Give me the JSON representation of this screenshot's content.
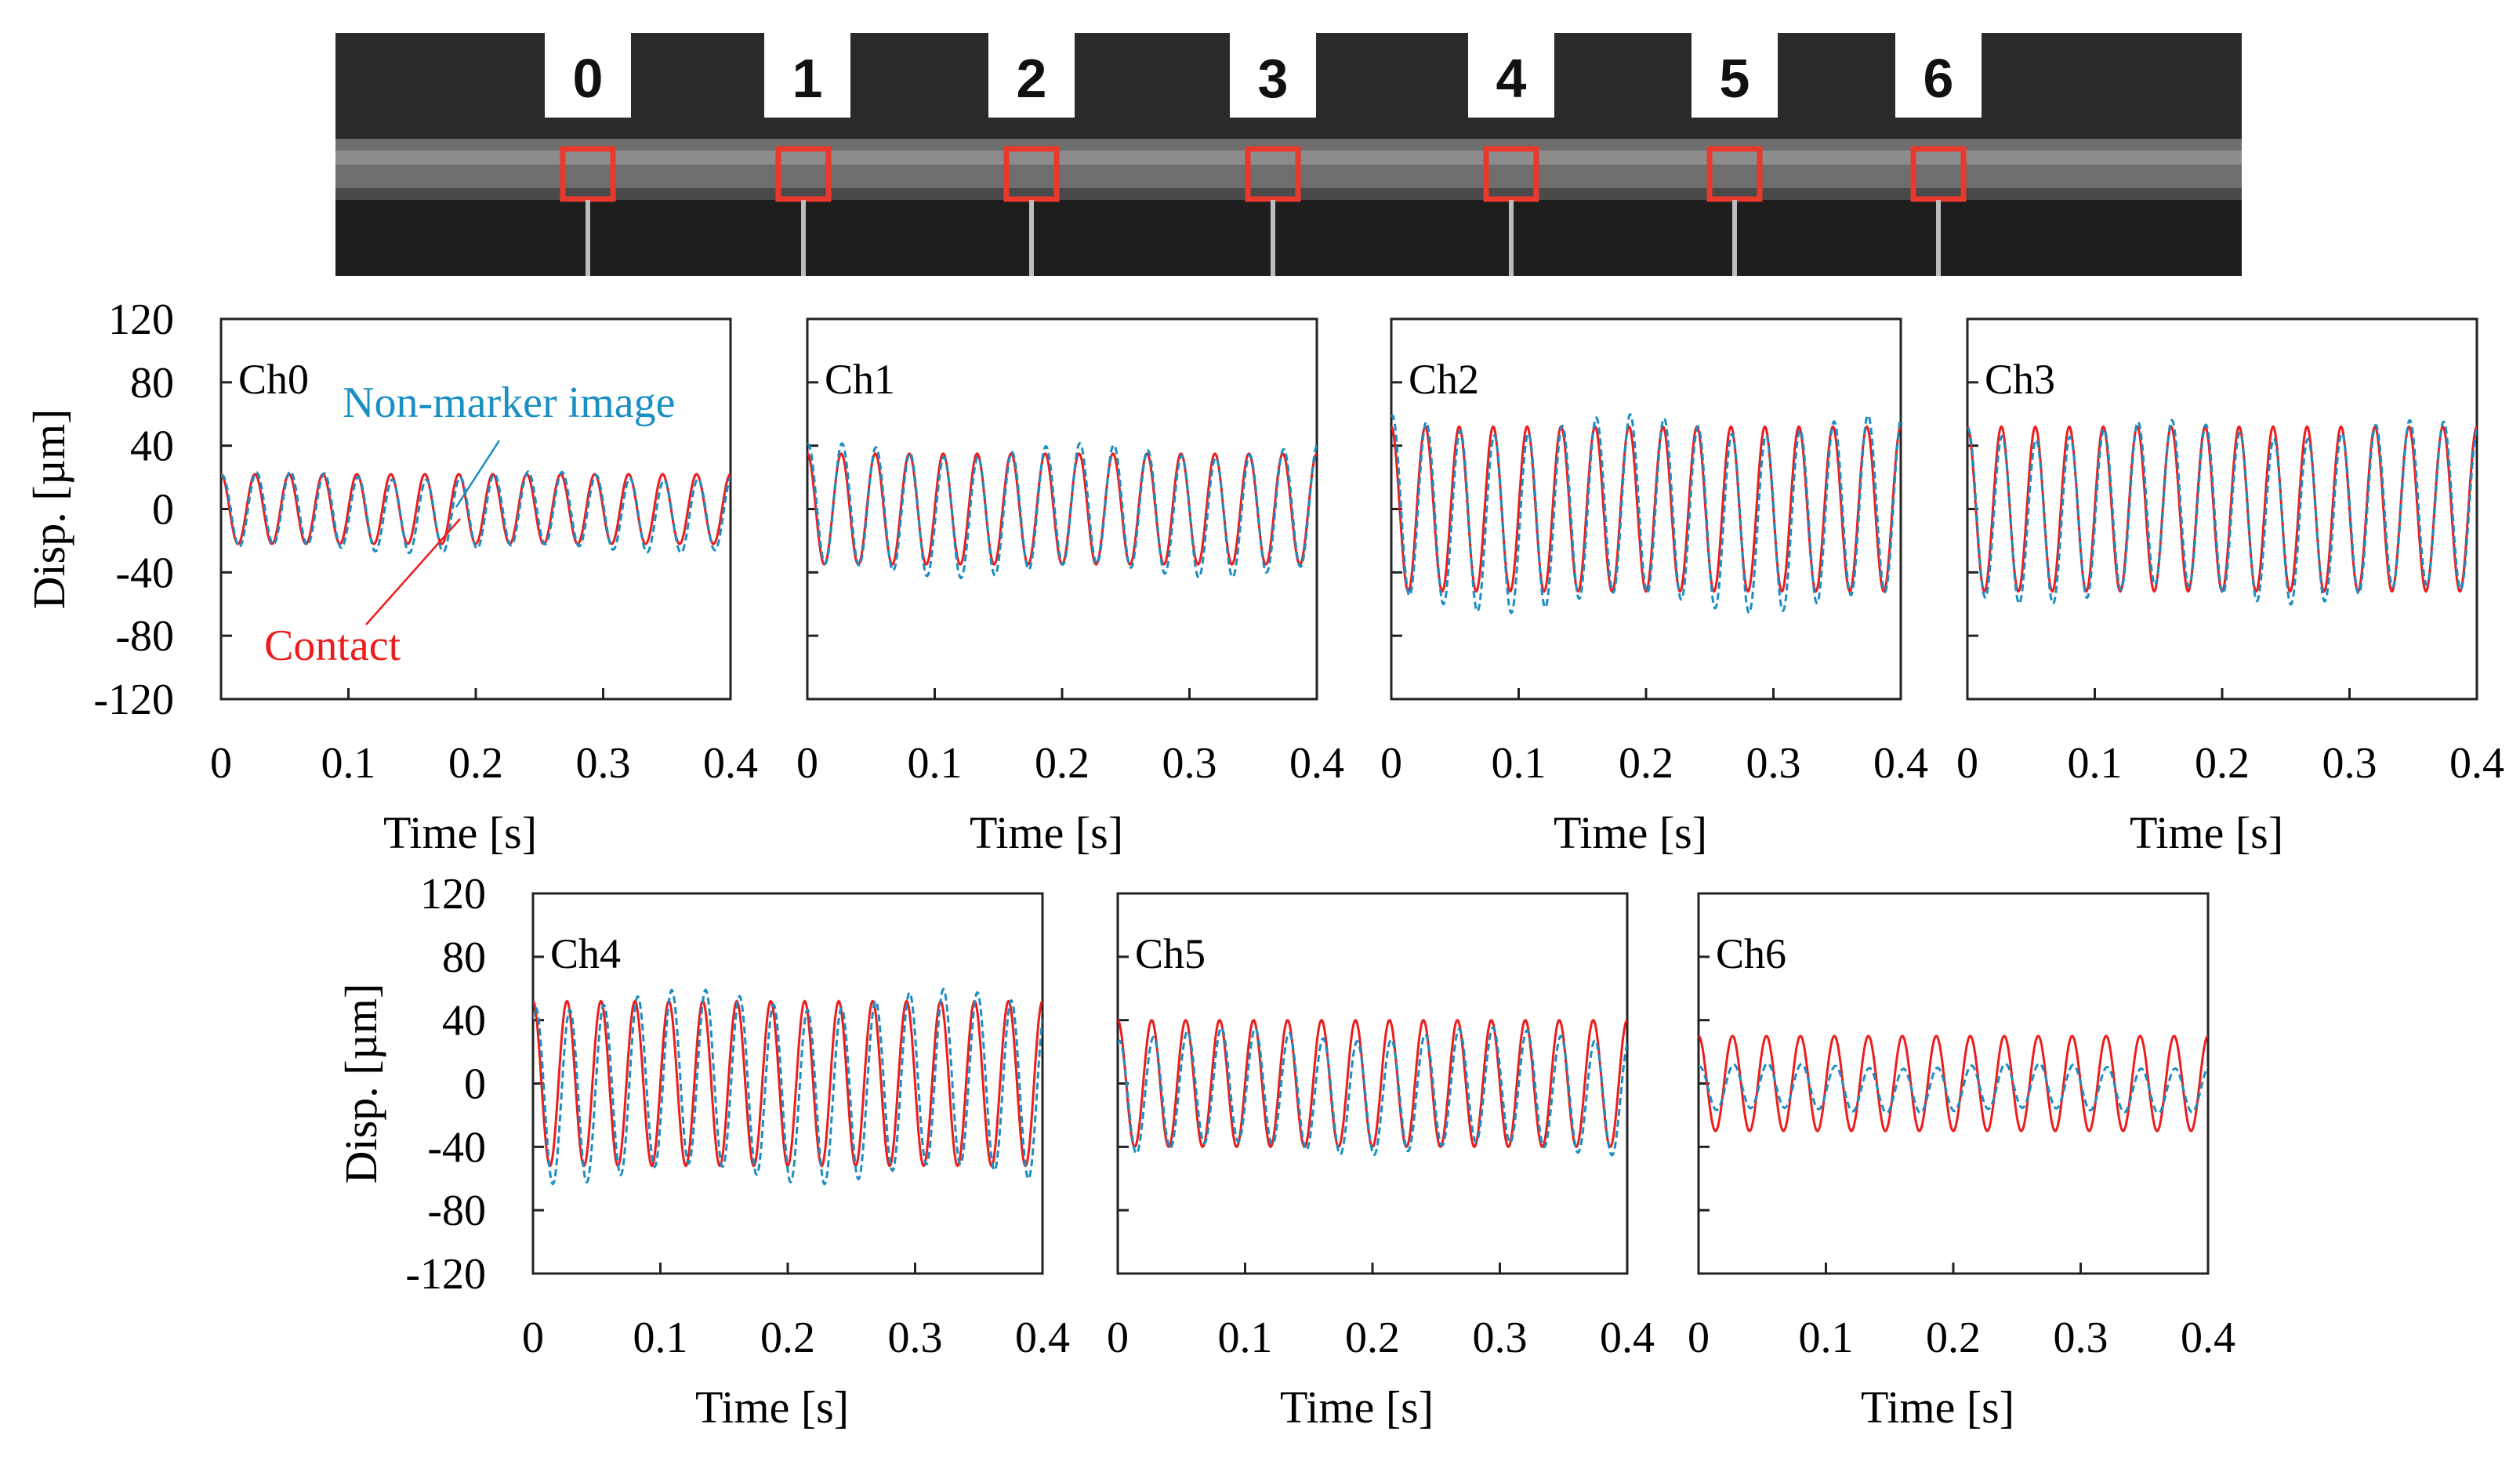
{
  "photo": {
    "channel_labels": [
      "0",
      "1",
      "2",
      "3",
      "4",
      "5",
      "6"
    ]
  },
  "colors": {
    "contact": "#ee1c1c",
    "non_marker": "#1a8fc4",
    "marker_box": "#e8392c",
    "photo_bg": "#1e1e1e",
    "beam": "#6e6e6e"
  },
  "chart_data": [
    {
      "type": "line",
      "title": "Ch0",
      "xlabel": "Time [s]",
      "ylabel": "Disp. [µm]",
      "xlim": [
        0,
        0.4
      ],
      "ylim": [
        -120,
        120
      ],
      "x_ticks": [
        "0",
        "0.1",
        "0.2",
        "0.3",
        "0.4"
      ],
      "y_ticks": [
        "120",
        "80",
        "40",
        "0",
        "-40",
        "-80",
        "-120"
      ],
      "annotations": [
        "Non-marker image",
        "Contact"
      ],
      "frequency_hz": 37.5,
      "series": [
        {
          "name": "Contact",
          "amplitude": 22,
          "offset": 0,
          "phase_deg": 90
        },
        {
          "name": "Non-marker image",
          "amplitude": 23,
          "offset": -2,
          "phase_deg": 75
        }
      ]
    },
    {
      "type": "line",
      "title": "Ch1",
      "xlabel": "Time [s]",
      "xlim": [
        0,
        0.4
      ],
      "ylim": [
        -120,
        120
      ],
      "x_ticks": [
        "0",
        "0.1",
        "0.2",
        "0.3",
        "0.4"
      ],
      "frequency_hz": 37.5,
      "series": [
        {
          "name": "Contact",
          "amplitude": 35,
          "offset": 0,
          "phase_deg": 90
        },
        {
          "name": "Non-marker image",
          "amplitude": 38,
          "offset": -1,
          "phase_deg": 82
        }
      ]
    },
    {
      "type": "line",
      "title": "Ch2",
      "xlabel": "Time [s]",
      "xlim": [
        0,
        0.4
      ],
      "ylim": [
        -120,
        120
      ],
      "x_ticks": [
        "0",
        "0.1",
        "0.2",
        "0.3",
        "0.4"
      ],
      "frequency_hz": 37.5,
      "series": [
        {
          "name": "Contact",
          "amplitude": 52,
          "offset": 0,
          "phase_deg": 90
        },
        {
          "name": "Non-marker image",
          "amplitude": 56,
          "offset": -3,
          "phase_deg": 78
        }
      ]
    },
    {
      "type": "line",
      "title": "Ch3",
      "xlabel": "Time [s]",
      "xlim": [
        0,
        0.4
      ],
      "ylim": [
        -120,
        120
      ],
      "x_ticks": [
        "0",
        "0.1",
        "0.2",
        "0.3",
        "0.4"
      ],
      "frequency_hz": 37.5,
      "series": [
        {
          "name": "Contact",
          "amplitude": 52,
          "offset": 0,
          "phase_deg": 90
        },
        {
          "name": "Non-marker image",
          "amplitude": 52,
          "offset": -2,
          "phase_deg": 82
        }
      ]
    },
    {
      "type": "line",
      "title": "Ch4",
      "xlabel": "Time [s]",
      "ylabel": "Disp. [µm]",
      "xlim": [
        0,
        0.4
      ],
      "ylim": [
        -120,
        120
      ],
      "x_ticks": [
        "0",
        "0.1",
        "0.2",
        "0.3",
        "0.4"
      ],
      "y_ticks": [
        "120",
        "80",
        "40",
        "0",
        "-40",
        "-80",
        "-120"
      ],
      "frequency_hz": 37.5,
      "series": [
        {
          "name": "Contact",
          "amplitude": 52,
          "offset": 0,
          "phase_deg": 90
        },
        {
          "name": "Non-marker image",
          "amplitude": 55,
          "offset": -2,
          "phase_deg": 60
        }
      ]
    },
    {
      "type": "line",
      "title": "Ch5",
      "xlabel": "Time [s]",
      "xlim": [
        0,
        0.4
      ],
      "ylim": [
        -120,
        120
      ],
      "x_ticks": [
        "0",
        "0.1",
        "0.2",
        "0.3",
        "0.4"
      ],
      "frequency_hz": 37.5,
      "series": [
        {
          "name": "Contact",
          "amplitude": 40,
          "offset": 0,
          "phase_deg": 90
        },
        {
          "name": "Non-marker image",
          "amplitude": 36,
          "offset": -5,
          "phase_deg": 72
        }
      ]
    },
    {
      "type": "line",
      "title": "Ch6",
      "xlabel": "Time [s]",
      "xlim": [
        0,
        0.4
      ],
      "ylim": [
        -120,
        120
      ],
      "x_ticks": [
        "0",
        "0.1",
        "0.2",
        "0.3",
        "0.4"
      ],
      "frequency_hz": 37.5,
      "series": [
        {
          "name": "Contact",
          "amplitude": 30,
          "offset": 0,
          "phase_deg": 90
        },
        {
          "name": "Non-marker image",
          "amplitude": 14,
          "offset": -3,
          "phase_deg": 78
        }
      ]
    }
  ]
}
